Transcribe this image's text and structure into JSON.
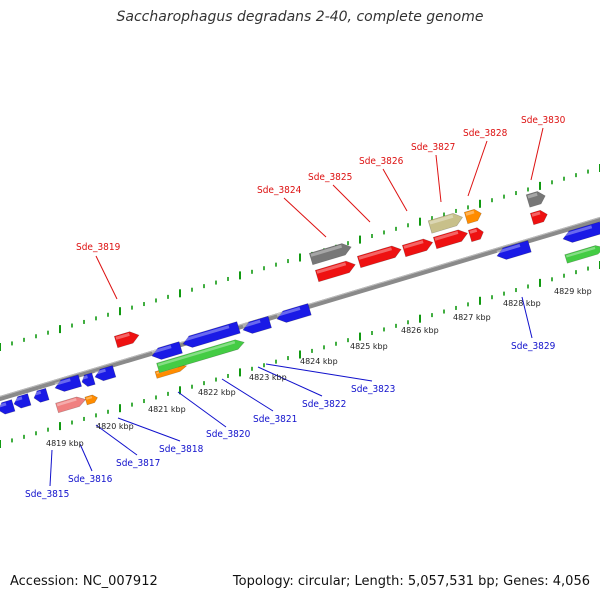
{
  "title": "Saccharophagus degradans 2-40, complete genome",
  "accession": "Accession: NC_007912",
  "topology": "Topology: circular; Length: 5,057,531 bp; Genes: 4,056",
  "colors": {
    "forward": "#ee1111",
    "reverse": "#1a1ae6",
    "grey": "#777777",
    "khaki": "#c8c08a",
    "orange": "#ff8c00",
    "green": "#44cc44",
    "pink": "#f08080",
    "backbone": "#8a8a8a",
    "tick": "#119911"
  },
  "tick_labels": [
    "4819 kbp",
    "4820 kbp",
    "4821 kbp",
    "4822 kbp",
    "4823 kbp",
    "4824 kbp",
    "4825 kbp",
    "4826 kbp",
    "4827 kbp",
    "4828 kbp",
    "4829 kbp"
  ],
  "upper_labels": [
    "Sde_3819",
    "Sde_3824",
    "Sde_3825",
    "Sde_3826",
    "Sde_3827",
    "Sde_3828",
    "Sde_3830"
  ],
  "lower_labels": [
    "Sde_3815",
    "Sde_3816",
    "Sde_3817",
    "Sde_3818",
    "Sde_3820",
    "Sde_3821",
    "Sde_3822",
    "Sde_3823",
    "Sde_3829"
  ]
}
